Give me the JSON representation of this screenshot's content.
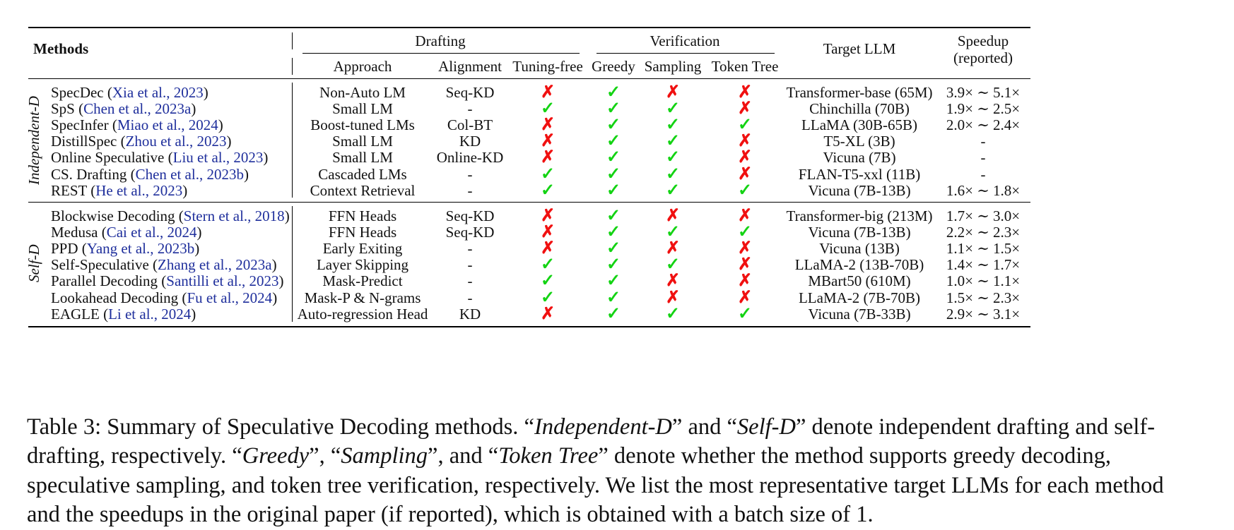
{
  "headers": {
    "methods": "Methods",
    "drafting": "Drafting",
    "verification": "Verification",
    "approach": "Approach",
    "alignment": "Alignment",
    "tuning_free": "Tuning-free",
    "greedy": "Greedy",
    "sampling": "Sampling",
    "token_tree": "Token Tree",
    "target_llm": "Target LLM",
    "speedup_1": "Speedup",
    "speedup_2": "(reported)"
  },
  "groups": [
    {
      "label": "Independent-D",
      "rows": [
        {
          "name": "SpecDec (",
          "cite": "Xia et al., 2023",
          "close": ")",
          "approach": "Non-Auto LM",
          "alignment": "Seq-KD",
          "tuning_free": false,
          "greedy": true,
          "sampling": false,
          "token_tree": false,
          "target": "Transformer-base (65M)",
          "speedup": "3.9× ∼ 5.1×"
        },
        {
          "name": "SpS (",
          "cite": "Chen et al., 2023a",
          "close": ")",
          "approach": "Small LM",
          "alignment": "-",
          "tuning_free": true,
          "greedy": true,
          "sampling": true,
          "token_tree": false,
          "target": "Chinchilla (70B)",
          "speedup": "1.9× ∼ 2.5×"
        },
        {
          "name": "SpecInfer (",
          "cite": "Miao et al., 2024",
          "close": ")",
          "approach": "Boost-tuned LMs",
          "alignment": "Col-BT",
          "tuning_free": false,
          "greedy": true,
          "sampling": true,
          "token_tree": true,
          "target": "LLaMA (30B-65B)",
          "speedup": "2.0× ∼ 2.4×"
        },
        {
          "name": "DistillSpec (",
          "cite": "Zhou et al., 2023",
          "close": ")",
          "approach": "Small LM",
          "alignment": "KD",
          "tuning_free": false,
          "greedy": true,
          "sampling": true,
          "token_tree": false,
          "target": "T5-XL (3B)",
          "speedup": "-"
        },
        {
          "name": "Online Speculative (",
          "cite": "Liu et al., 2023",
          "close": ")",
          "approach": "Small LM",
          "alignment": "Online-KD",
          "tuning_free": false,
          "greedy": true,
          "sampling": true,
          "token_tree": false,
          "target": "Vicuna (7B)",
          "speedup": "-"
        },
        {
          "name": "CS. Drafting (",
          "cite": "Chen et al., 2023b",
          "close": ")",
          "approach": "Cascaded LMs",
          "alignment": "-",
          "tuning_free": true,
          "greedy": true,
          "sampling": true,
          "token_tree": false,
          "target": "FLAN-T5-xxl (11B)",
          "speedup": "-"
        },
        {
          "name": "REST (",
          "cite": "He et al., 2023",
          "close": ")",
          "approach": "Context Retrieval",
          "alignment": "-",
          "tuning_free": true,
          "greedy": true,
          "sampling": true,
          "token_tree": true,
          "target": "Vicuna (7B-13B)",
          "speedup": "1.6× ∼ 1.8×"
        }
      ]
    },
    {
      "label": "Self-D",
      "rows": [
        {
          "name": "Blockwise Decoding (",
          "cite": "Stern et al., 2018",
          "close": ")",
          "approach": "FFN Heads",
          "alignment": "Seq-KD",
          "tuning_free": false,
          "greedy": true,
          "sampling": false,
          "token_tree": false,
          "target": "Transformer-big (213M)",
          "speedup": "1.7× ∼ 3.0×"
        },
        {
          "name": "Medusa (",
          "cite": "Cai et al., 2024",
          "close": ")",
          "approach": "FFN Heads",
          "alignment": "Seq-KD",
          "tuning_free": false,
          "greedy": true,
          "sampling": true,
          "token_tree": true,
          "target": "Vicuna (7B-13B)",
          "speedup": "2.2× ∼ 2.3×"
        },
        {
          "name": "PPD (",
          "cite": "Yang et al., 2023b",
          "close": ")",
          "approach": "Early Exiting",
          "alignment": "-",
          "tuning_free": false,
          "greedy": true,
          "sampling": false,
          "token_tree": false,
          "target": "Vicuna (13B)",
          "speedup": "1.1× ∼ 1.5×"
        },
        {
          "name": "Self-Speculative (",
          "cite": "Zhang et al., 2023a",
          "close": ")",
          "approach": "Layer Skipping",
          "alignment": "-",
          "tuning_free": true,
          "greedy": true,
          "sampling": true,
          "token_tree": false,
          "target": "LLaMA-2 (13B-70B)",
          "speedup": "1.4× ∼ 1.7×"
        },
        {
          "name": "Parallel Decoding (",
          "cite": "Santilli et al., 2023",
          "close": ")",
          "approach": "Mask-Predict",
          "alignment": "-",
          "tuning_free": true,
          "greedy": true,
          "sampling": false,
          "token_tree": false,
          "target": "MBart50 (610M)",
          "speedup": "1.0× ∼ 1.1×"
        },
        {
          "name": "Lookahead Decoding (",
          "cite": "Fu et al., 2024",
          "close": ")",
          "approach": "Mask-P & N-grams",
          "alignment": "-",
          "tuning_free": true,
          "greedy": true,
          "sampling": false,
          "token_tree": false,
          "target": "LLaMA-2 (7B-70B)",
          "speedup": "1.5× ∼ 2.3×"
        },
        {
          "name": "EAGLE (",
          "cite": "Li et al., 2024",
          "close": ")",
          "approach": "Auto-regression Head",
          "alignment": "KD",
          "tuning_free": false,
          "greedy": true,
          "sampling": true,
          "token_tree": true,
          "target": "Vicuna (7B-33B)",
          "speedup": "2.9× ∼ 3.1×"
        }
      ]
    }
  ],
  "marks": {
    "yes": "✓",
    "no": "✗"
  },
  "caption": {
    "p1": "Table 3: Summary of Speculative Decoding methods. “",
    "i1": "Independent-D",
    "p2": "” and “",
    "i2": "Self-D",
    "p3": "” denote independent drafting and self-drafting, respectively. “",
    "i3": "Greedy",
    "p4": "”, “",
    "i4": "Sampling",
    "p5": "”, and “",
    "i5": "Token Tree",
    "p6": "” denote whether the method supports greedy decoding, speculative sampling, and token tree verification, respectively. We list the most representative target LLMs for each method and the speedups in the original paper (if reported), which is obtained with a batch size of 1."
  },
  "colors": {
    "check": "#13d313",
    "cross": "#f01010",
    "citation": "#1f2f9c"
  }
}
